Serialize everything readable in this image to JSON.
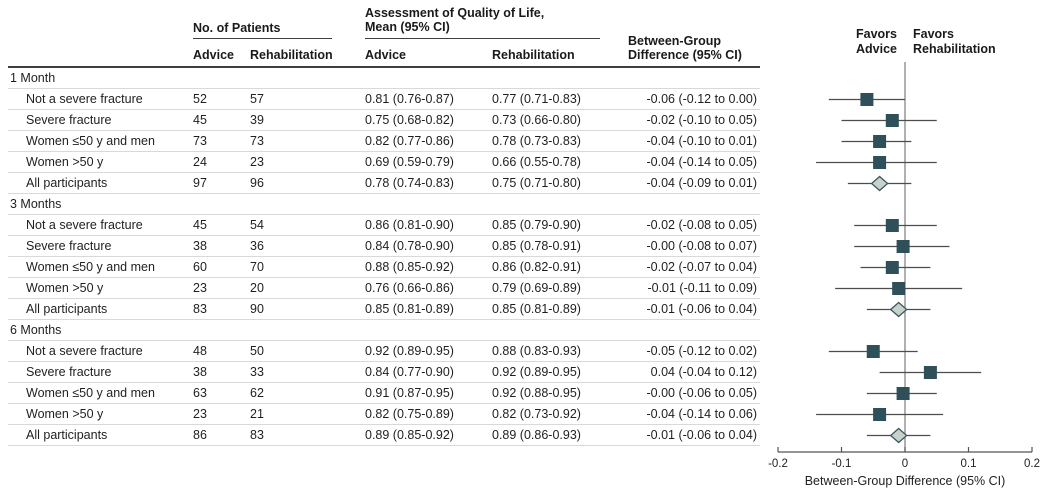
{
  "figure": {
    "headers": {
      "patients_group": "No. of Patients",
      "qol_group": "Assessment of Quality of Life,\nMean (95% CI)",
      "sub_advice_n": "Advice",
      "sub_rehab_n": "Rehabilitation",
      "sub_advice_qol": "Advice",
      "sub_rehab_qol": "Rehabilitation",
      "between_group": "Between-Group\nDifference (95% CI)"
    },
    "plot_labels": {
      "favors_left": "Favors\nAdvice",
      "favors_right": "Favors\nRehabilitation"
    }
  },
  "chart_data": {
    "type": "forest",
    "xlabel": "Between-Group Difference (95% CI)",
    "xlim": [
      -0.2,
      0.2
    ],
    "xticks": [
      -0.2,
      -0.1,
      0,
      0.1,
      0.2
    ],
    "colors": {
      "square": "#2f4f59",
      "diamond_fill": "#c9d1cb",
      "diamond_stroke": "#3a585f",
      "ci_line": "#4d4d4d",
      "zero_line": "#7d7d7d",
      "axis": "#555555"
    },
    "sections": [
      {
        "label": "1 Month",
        "rows": [
          {
            "label": "Not a severe fracture",
            "n_advice": "52",
            "n_rehab": "57",
            "qol_advice": "0.81 (0.76-0.87)",
            "qol_rehab": "0.77 (0.71-0.83)",
            "diff_text": "-0.06 (-0.12 to 0.00)",
            "est": -0.06,
            "lo": -0.12,
            "hi": 0.0,
            "marker": "square"
          },
          {
            "label": "Severe fracture",
            "n_advice": "45",
            "n_rehab": "39",
            "qol_advice": "0.75 (0.68-0.82)",
            "qol_rehab": "0.73 (0.66-0.80)",
            "diff_text": "-0.02 (-0.10 to 0.05)",
            "est": -0.02,
            "lo": -0.1,
            "hi": 0.05,
            "marker": "square"
          },
          {
            "label": "Women ≤50 y and men",
            "n_advice": "73",
            "n_rehab": "73",
            "qol_advice": "0.82 (0.77-0.86)",
            "qol_rehab": "0.78 (0.73-0.83)",
            "diff_text": "-0.04 (-0.10 to 0.01)",
            "est": -0.04,
            "lo": -0.1,
            "hi": 0.01,
            "marker": "square"
          },
          {
            "label": "Women >50 y",
            "n_advice": "24",
            "n_rehab": "23",
            "qol_advice": "0.69 (0.59-0.79)",
            "qol_rehab": "0.66 (0.55-0.78)",
            "diff_text": "-0.04 (-0.14 to 0.05)",
            "est": -0.04,
            "lo": -0.14,
            "hi": 0.05,
            "marker": "square"
          },
          {
            "label": "All participants",
            "n_advice": "97",
            "n_rehab": "96",
            "qol_advice": "0.78 (0.74-0.83)",
            "qol_rehab": "0.75 (0.71-0.80)",
            "diff_text": "-0.04 (-0.09 to 0.01)",
            "est": -0.04,
            "lo": -0.09,
            "hi": 0.01,
            "marker": "diamond"
          }
        ]
      },
      {
        "label": "3 Months",
        "rows": [
          {
            "label": "Not a severe fracture",
            "n_advice": "45",
            "n_rehab": "54",
            "qol_advice": "0.86 (0.81-0.90)",
            "qol_rehab": "0.85 (0.79-0.90)",
            "diff_text": "-0.02 (-0.08 to 0.05)",
            "est": -0.02,
            "lo": -0.08,
            "hi": 0.05,
            "marker": "square"
          },
          {
            "label": "Severe fracture",
            "n_advice": "38",
            "n_rehab": "36",
            "qol_advice": "0.84 (0.78-0.90)",
            "qol_rehab": "0.85 (0.78-0.91)",
            "diff_text": "-0.00 (-0.08 to 0.07)",
            "est": -0.003,
            "lo": -0.08,
            "hi": 0.07,
            "marker": "square"
          },
          {
            "label": "Women ≤50 y and men",
            "n_advice": "60",
            "n_rehab": "70",
            "qol_advice": "0.88 (0.85-0.92)",
            "qol_rehab": "0.86 (0.82-0.91)",
            "diff_text": "-0.02 (-0.07 to 0.04)",
            "est": -0.02,
            "lo": -0.07,
            "hi": 0.04,
            "marker": "square"
          },
          {
            "label": "Women >50 y",
            "n_advice": "23",
            "n_rehab": "20",
            "qol_advice": "0.76 (0.66-0.86)",
            "qol_rehab": "0.79 (0.69-0.89)",
            "diff_text": "-0.01 (-0.11 to 0.09)",
            "est": -0.01,
            "lo": -0.11,
            "hi": 0.09,
            "marker": "square"
          },
          {
            "label": "All participants",
            "n_advice": "83",
            "n_rehab": "90",
            "qol_advice": "0.85 (0.81-0.89)",
            "qol_rehab": "0.85 (0.81-0.89)",
            "diff_text": "-0.01 (-0.06 to 0.04)",
            "est": -0.01,
            "lo": -0.06,
            "hi": 0.04,
            "marker": "diamond"
          }
        ]
      },
      {
        "label": "6 Months",
        "rows": [
          {
            "label": "Not a severe fracture",
            "n_advice": "48",
            "n_rehab": "50",
            "qol_advice": "0.92 (0.89-0.95)",
            "qol_rehab": "0.88 (0.83-0.93)",
            "diff_text": "-0.05 (-0.12 to 0.02)",
            "est": -0.05,
            "lo": -0.12,
            "hi": 0.02,
            "marker": "square"
          },
          {
            "label": "Severe fracture",
            "n_advice": "38",
            "n_rehab": "33",
            "qol_advice": "0.84 (0.77-0.90)",
            "qol_rehab": "0.92 (0.89-0.95)",
            "diff_text": "0.04 (-0.04 to 0.12)",
            "est": 0.04,
            "lo": -0.04,
            "hi": 0.12,
            "marker": "square"
          },
          {
            "label": "Women ≤50 y and men",
            "n_advice": "63",
            "n_rehab": "62",
            "qol_advice": "0.91 (0.87-0.95)",
            "qol_rehab": "0.92 (0.88-0.95)",
            "diff_text": "-0.00 (-0.06 to 0.05)",
            "est": -0.003,
            "lo": -0.06,
            "hi": 0.05,
            "marker": "square"
          },
          {
            "label": "Women >50 y",
            "n_advice": "23",
            "n_rehab": "21",
            "qol_advice": "0.82 (0.75-0.89)",
            "qol_rehab": "0.82 (0.73-0.92)",
            "diff_text": "-0.04 (-0.14 to 0.06)",
            "est": -0.04,
            "lo": -0.14,
            "hi": 0.06,
            "marker": "square"
          },
          {
            "label": "All participants",
            "n_advice": "86",
            "n_rehab": "83",
            "qol_advice": "0.89 (0.85-0.92)",
            "qol_rehab": "0.89 (0.86-0.93)",
            "diff_text": "-0.01 (-0.06 to 0.04)",
            "est": -0.01,
            "lo": -0.06,
            "hi": 0.04,
            "marker": "diamond"
          }
        ]
      }
    ]
  }
}
